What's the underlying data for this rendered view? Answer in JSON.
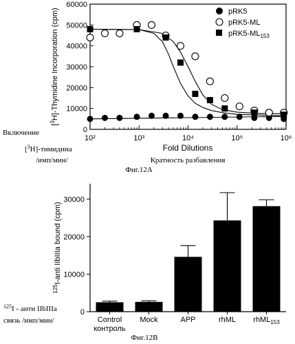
{
  "chart_data": [
    {
      "type": "scatter",
      "figure_label": "Фиг.12А",
      "ylabel": "[3H]-Thymidine Incorporation (cpm)",
      "ylabel_ru": [
        "Включение",
        "[3H]-тимидина",
        "/имп/мин/"
      ],
      "xlabel": "Fold Dilutions",
      "xlabel_ru": "Кратность разбавления",
      "x_scale": "log",
      "xlim": [
        100,
        1000000
      ],
      "ylim": [
        0,
        60000
      ],
      "x_tick_labels": [
        "10²",
        "10³",
        "10⁴",
        "10⁵",
        "10⁶"
      ],
      "x_tick_values": [
        100,
        1000,
        10000,
        100000,
        1000000
      ],
      "y_ticks": [
        0,
        10000,
        20000,
        30000,
        40000,
        50000,
        60000
      ],
      "legend_position": "top-right",
      "series": [
        {
          "name": "pRK5",
          "marker": "filled-circle",
          "x": [
            100,
            200,
            400,
            900,
            1800,
            3500,
            7000,
            14000,
            28000,
            56000,
            112000,
            225000,
            450000,
            900000
          ],
          "y": [
            5000,
            5500,
            5500,
            6000,
            6500,
            6500,
            6500,
            6000,
            6000,
            6000,
            6000,
            5500,
            5500,
            5000
          ],
          "curve_x": [
            100,
            1000000
          ],
          "curve_y": [
            5000,
            6200
          ]
        },
        {
          "name": "pRK5-ML",
          "marker": "open-circle",
          "x": [
            100,
            200,
            400,
            900,
            1800,
            3500,
            7000,
            14000,
            28000,
            56000,
            112000,
            225000,
            450000,
            900000
          ],
          "y": [
            44000,
            46000,
            46000,
            50000,
            50000,
            45000,
            40000,
            35000,
            23000,
            15000,
            11000,
            9000,
            8000,
            8000
          ],
          "curve_x": [
            100,
            1000,
            3000,
            5000,
            7000,
            10000,
            14000,
            20000,
            30000,
            50000,
            100000,
            300000,
            1000000
          ],
          "curve_y": [
            48000,
            47800,
            46000,
            42000,
            37000,
            30000,
            23000,
            16500,
            12000,
            9500,
            8200,
            7600,
            7500
          ]
        },
        {
          "name": "pRK5-ML153",
          "marker": "filled-square",
          "x": [
            100,
            900,
            3500,
            7000,
            14000,
            28000,
            56000,
            225000,
            900000
          ],
          "y": [
            48000,
            48000,
            44000,
            32000,
            17000,
            14000,
            10000,
            8000,
            7000
          ],
          "curve_x": [
            100,
            1000,
            2000,
            3000,
            4000,
            5000,
            7000,
            10000,
            14000,
            20000,
            30000,
            50000,
            100000,
            1000000
          ],
          "curve_y": [
            48000,
            47800,
            46000,
            42000,
            36000,
            30000,
            22000,
            16000,
            12500,
            10500,
            9000,
            8000,
            7200,
            6500
          ]
        }
      ]
    },
    {
      "type": "bar",
      "figure_label": "Фиг.12В",
      "ylabel": "125I-anti IIbIIIa bound (cpm)",
      "ylabel_ru": [
        "125I - анти IIbIIIa",
        "связь /имп/мин/"
      ],
      "categories": [
        "Control",
        "Mock",
        "APP",
        "rhML",
        "rhML153"
      ],
      "category_subtitles": [
        "контроль",
        "",
        "",
        "",
        ""
      ],
      "values": [
        2500,
        2600,
        14600,
        24300,
        28100
      ],
      "errors": [
        300,
        300,
        3000,
        7400,
        1700
      ],
      "ylim": [
        0,
        35000
      ],
      "y_ticks": [
        0,
        10000,
        20000,
        30000
      ]
    }
  ]
}
